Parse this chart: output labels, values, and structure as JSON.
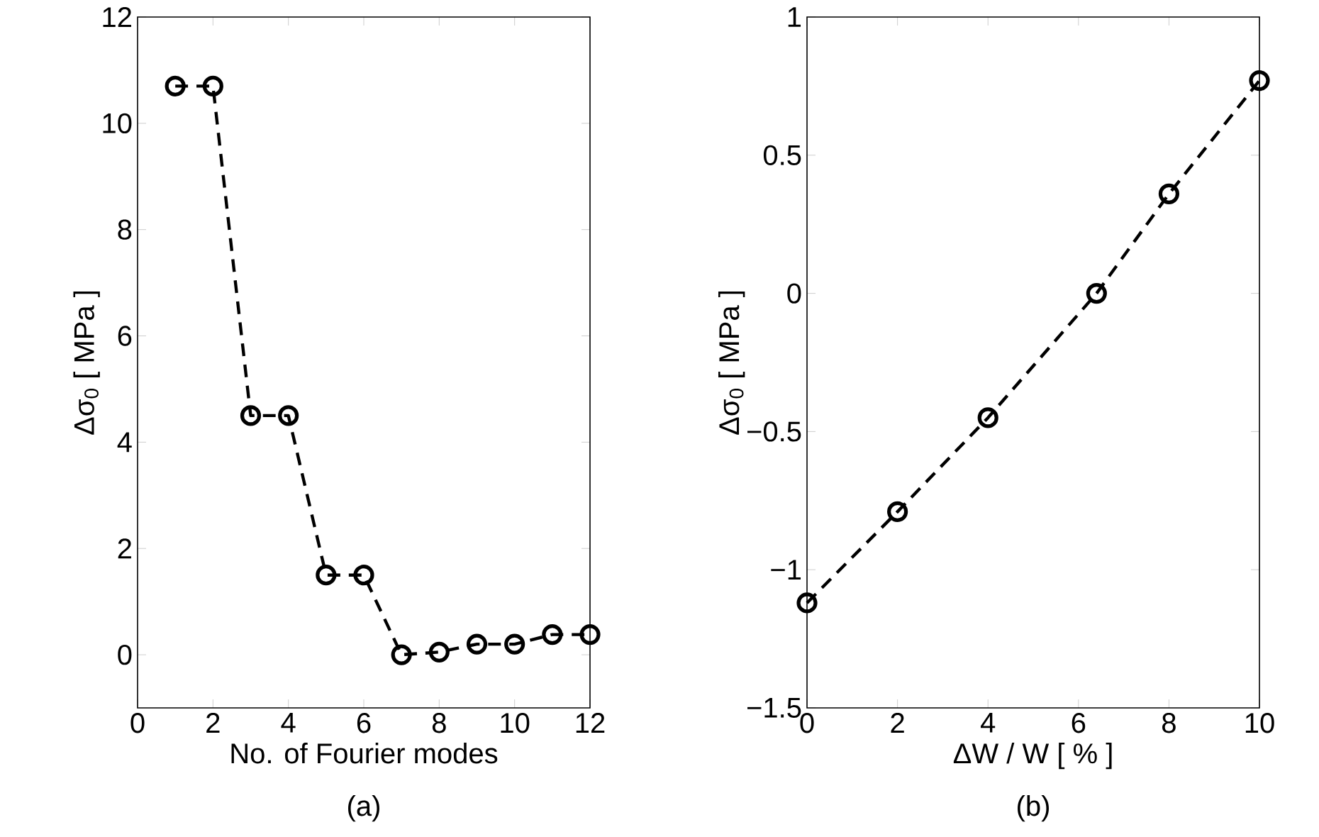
{
  "chart_data": [
    {
      "type": "line",
      "xlabel": "No. of Fourier modes",
      "ylabel": "Δσ$_{0}$   [ MPa ]",
      "annotations": [
        "(a)"
      ],
      "x": [
        1,
        2,
        3,
        4,
        5,
        6,
        7,
        8,
        9,
        10,
        11,
        12
      ],
      "series": [
        {
          "color": "#000000",
          "values": [
            10.7,
            10.7,
            4.5,
            4.5,
            1.5,
            1.5,
            0,
            0.05,
            0.2,
            0.2,
            0.38,
            0.38
          ]
        }
      ],
      "xlim": [
        0,
        12
      ],
      "ylim": [
        -1,
        12
      ],
      "xticks": [
        0,
        2,
        4,
        6,
        8,
        10,
        12
      ],
      "yticks": [
        0,
        2,
        4,
        6,
        8,
        10,
        12
      ],
      "marker": "circle",
      "line_style": "dashed"
    },
    {
      "type": "line",
      "xlabel": "ΔW / W   [ % ]",
      "ylabel": "Δσ$_{0}$   [ MPa ]",
      "annotations": [
        "(b)"
      ],
      "x": [
        0,
        2,
        4,
        6.4,
        8,
        10
      ],
      "series": [
        {
          "color": "#000000",
          "values": [
            -1.12,
            -0.79,
            -0.45,
            0,
            0.36,
            0.77
          ]
        }
      ],
      "xlim": [
        0,
        10
      ],
      "ylim": [
        -1.5,
        1
      ],
      "xticks": [
        0,
        2,
        4,
        6,
        8,
        10
      ],
      "yticks": [
        {
          "value": -1.5,
          "label": "−1.5"
        },
        {
          "value": -1,
          "label": "−1"
        },
        {
          "value": -0.5,
          "label": "−0.5"
        },
        0,
        0.5,
        1
      ],
      "marker": "circle",
      "line_style": "dashed"
    }
  ]
}
